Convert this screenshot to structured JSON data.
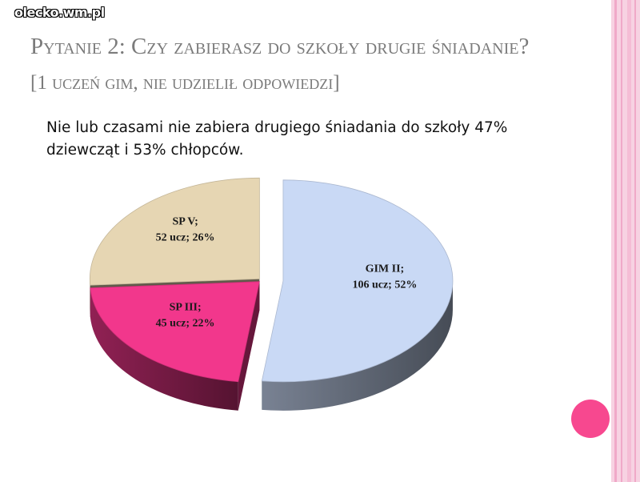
{
  "watermark": "olecko.wm.pl",
  "chart_data": {
    "type": "pie",
    "title": "Pytanie 2: Czy zabierasz do szkoły drugie śniadanie?",
    "title_note": "[1 uczeń gim, nie udzielił odpowiedzi]",
    "subtitle": "Nie lub czasami nie zabiera drugiego śniadania do szkoły 47% dziewcząt i 53% chłopców.",
    "categories": [
      "GIM II;",
      "SP III;",
      "SP V;"
    ],
    "values": [
      52,
      22,
      26
    ],
    "value_labels": [
      "106 ucz; 52%",
      "45 ucz; 22%",
      "52 ucz; 26%"
    ],
    "colors": [
      "#c9d9f5",
      "#f2378c",
      "#e6d6b3"
    ]
  }
}
